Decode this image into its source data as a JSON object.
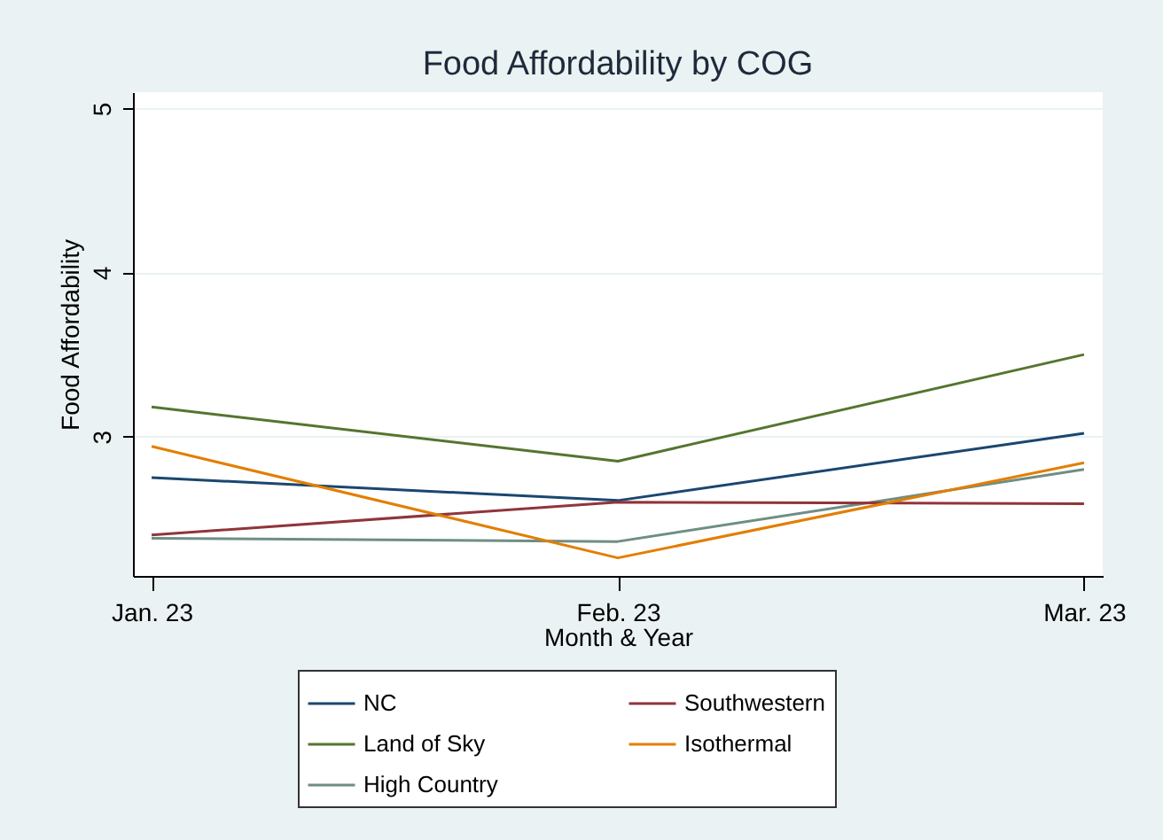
{
  "chart_data": {
    "type": "line",
    "title": "Food Affordability by COG",
    "xlabel": "Month & Year",
    "ylabel": "Food Affordability",
    "categories": [
      "Jan. 23",
      "Feb. 23",
      "Mar. 23"
    ],
    "series": [
      {
        "name": "NC",
        "color": "#1a476f",
        "values": [
          2.75,
          2.61,
          3.02
        ]
      },
      {
        "name": "Land of Sky",
        "color": "#55752f",
        "values": [
          3.18,
          2.85,
          3.5
        ]
      },
      {
        "name": "High Country",
        "color": "#6e8e84",
        "values": [
          2.38,
          2.36,
          2.8
        ]
      },
      {
        "name": "Southwestern",
        "color": "#90353b",
        "values": [
          2.4,
          2.6,
          2.59
        ]
      },
      {
        "name": "Isothermal",
        "color": "#e37e00",
        "values": [
          2.94,
          2.26,
          2.84
        ]
      }
    ],
    "ylim": [
      2.15,
      5.1
    ],
    "yticks": [
      3,
      4,
      5
    ],
    "grid": "y",
    "legend": "bottom",
    "marker": "none",
    "line_style": "solid"
  }
}
